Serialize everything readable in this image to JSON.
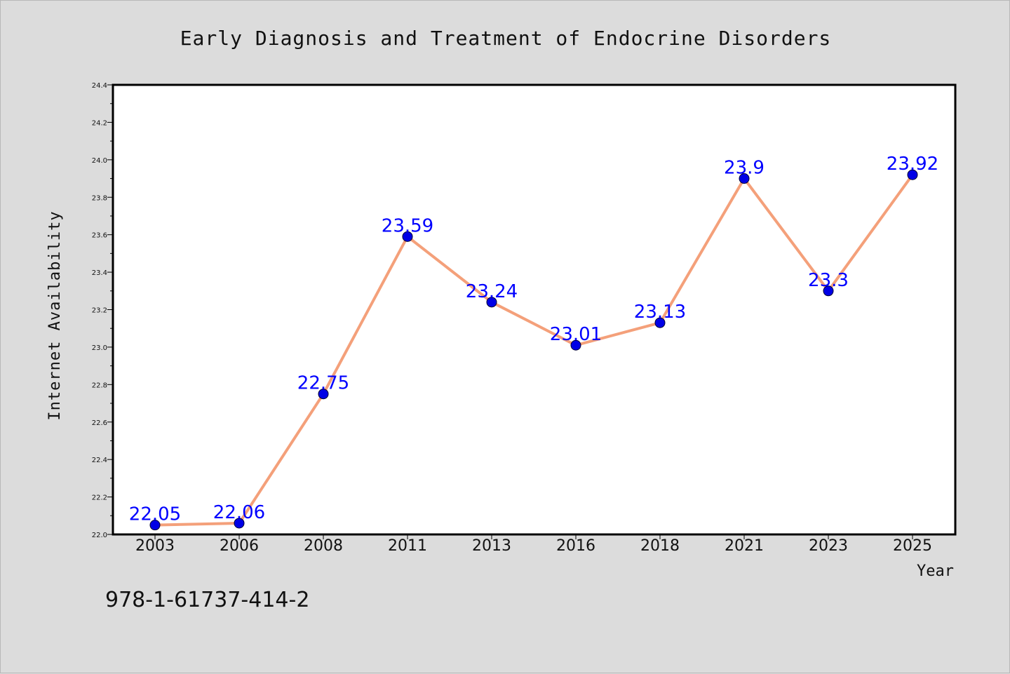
{
  "colors": {
    "background": "#dcdcdc",
    "plot_background": "#ffffff",
    "line": "#f4a07a",
    "marker": "#0000e6",
    "data_label": "#0000ff"
  },
  "footer_text": "978-1-61737-414-2",
  "chart_data": {
    "type": "line",
    "title": "Early Diagnosis and Treatment of Endocrine Disorders",
    "xlabel": "Year",
    "ylabel": "Internet Availability",
    "categories": [
      "2003",
      "2006",
      "2008",
      "2011",
      "2013",
      "2016",
      "2018",
      "2021",
      "2023",
      "2025"
    ],
    "series": [
      {
        "values": [
          22.05,
          22.06,
          22.75,
          23.59,
          23.24,
          23.01,
          23.13,
          23.9,
          23.3,
          23.92
        ],
        "labels": [
          "22.05",
          "22.06",
          "22.75",
          "23.59",
          "23.24",
          "23.01",
          "23.13",
          "23.9",
          "23.3",
          "23.92"
        ]
      }
    ],
    "ylim": [
      22.0,
      24.4
    ],
    "yticks": [
      "22.0",
      "22.2",
      "22.4",
      "22.6",
      "22.8",
      "23.0",
      "23.2",
      "23.4",
      "23.6",
      "23.8",
      "24.0",
      "24.2",
      "24.4"
    ],
    "grid": false,
    "legend": "none"
  }
}
